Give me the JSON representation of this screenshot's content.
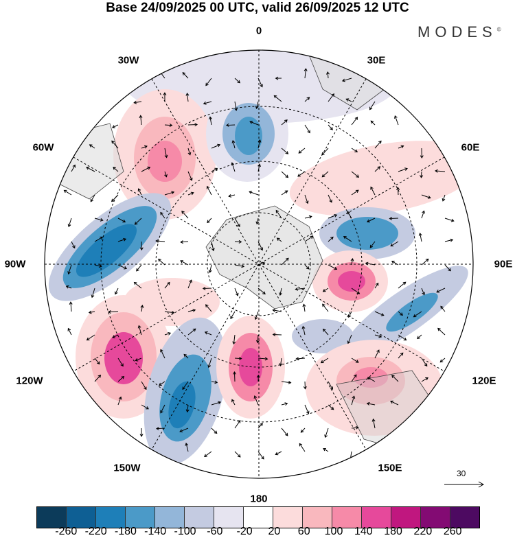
{
  "title": "Base 24/09/2025 00 UTC, valid 26/09/2025 12 UTC",
  "logo": "MODES",
  "logo_mark": "©",
  "longitude_labels": [
    "0",
    "30E",
    "60E",
    "90E",
    "120E",
    "150E",
    "180",
    "150W",
    "120W",
    "90W",
    "60W",
    "30W"
  ],
  "vector_scale_label": "30",
  "colorbar": {
    "colors": [
      "#0c3b5a",
      "#0e5f94",
      "#1e7fb8",
      "#4b9ac8",
      "#93b6d9",
      "#c4cbe1",
      "#e6e4f0",
      "#ffffff",
      "#fcdcdc",
      "#f9b8be",
      "#f68aa8",
      "#e6499b",
      "#c0177f",
      "#830b73",
      "#4d0a61"
    ],
    "labels": [
      "-260",
      "-220",
      "-180",
      "-140",
      "-100",
      "-60",
      "-20",
      "20",
      "60",
      "100",
      "140",
      "180",
      "220",
      "260"
    ]
  }
}
